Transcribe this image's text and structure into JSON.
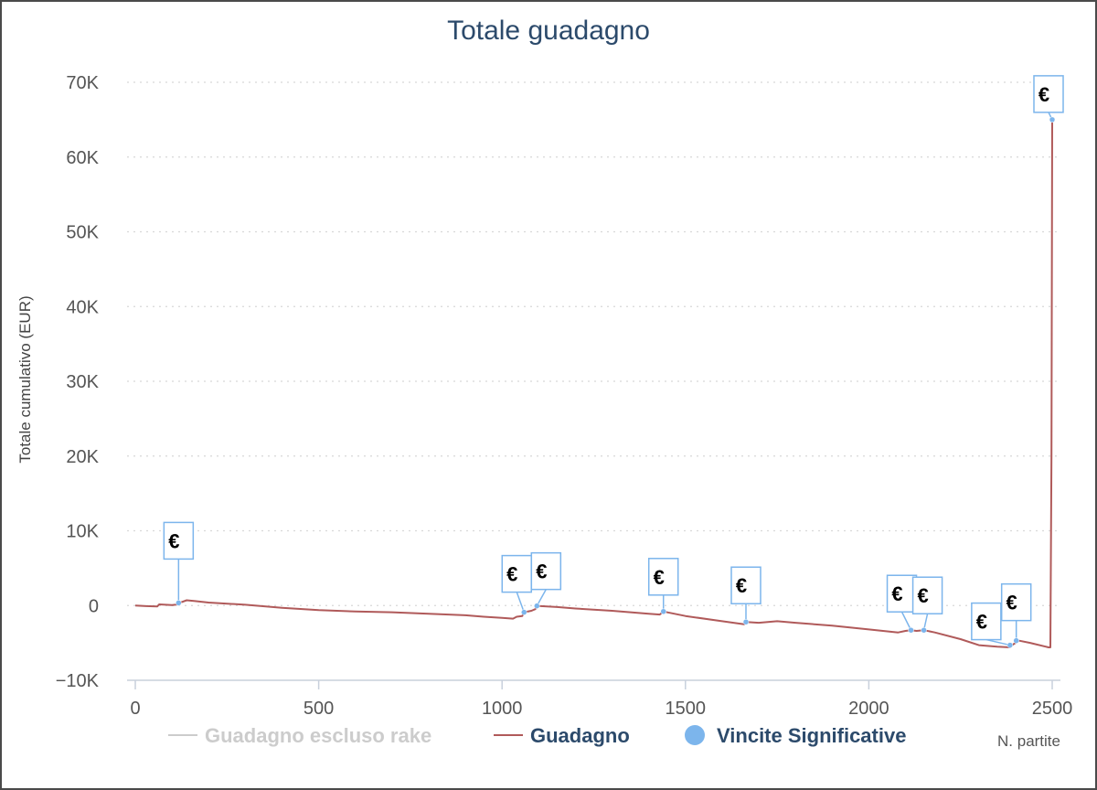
{
  "chart_data": {
    "type": "line",
    "title": "Totale guadagno",
    "ylabel": "Totale cumulativo (EUR)",
    "xlabel": "N. partite",
    "xlim": [
      -20,
      2510
    ],
    "ylim": [
      -10000,
      70000
    ],
    "x_ticks": [
      0,
      500,
      1000,
      1500,
      2000,
      2500
    ],
    "x_tick_labels": [
      "0",
      "500",
      "1000",
      "1500",
      "2000",
      "2500"
    ],
    "y_ticks": [
      -10000,
      0,
      10000,
      20000,
      30000,
      40000,
      50000,
      60000,
      70000
    ],
    "y_tick_labels": [
      "−10K",
      "0",
      "10K",
      "20K",
      "30K",
      "40K",
      "50K",
      "60K",
      "70K"
    ],
    "grid": "horizontal dotted",
    "legend_position": "bottom",
    "series": [
      {
        "name": "Guadagno escluso rake",
        "color": "#cccccc",
        "hidden": true,
        "points": []
      },
      {
        "name": "Guadagno",
        "color": "#b05a5a",
        "points": [
          [
            0,
            0
          ],
          [
            30,
            -80
          ],
          [
            60,
            -120
          ],
          [
            65,
            150
          ],
          [
            100,
            50
          ],
          [
            118,
            150
          ],
          [
            120,
            350
          ],
          [
            140,
            700
          ],
          [
            160,
            600
          ],
          [
            200,
            400
          ],
          [
            300,
            100
          ],
          [
            400,
            -300
          ],
          [
            500,
            -600
          ],
          [
            600,
            -800
          ],
          [
            700,
            -900
          ],
          [
            800,
            -1100
          ],
          [
            900,
            -1300
          ],
          [
            950,
            -1500
          ],
          [
            1000,
            -1650
          ],
          [
            1030,
            -1750
          ],
          [
            1040,
            -1500
          ],
          [
            1055,
            -1400
          ],
          [
            1060,
            -900
          ],
          [
            1080,
            -700
          ],
          [
            1090,
            -500
          ],
          [
            1100,
            -50
          ],
          [
            1150,
            -200
          ],
          [
            1200,
            -400
          ],
          [
            1300,
            -700
          ],
          [
            1400,
            -1100
          ],
          [
            1430,
            -1200
          ],
          [
            1440,
            -800
          ],
          [
            1500,
            -1400
          ],
          [
            1600,
            -2100
          ],
          [
            1660,
            -2500
          ],
          [
            1665,
            -2200
          ],
          [
            1700,
            -2300
          ],
          [
            1750,
            -2100
          ],
          [
            1800,
            -2300
          ],
          [
            1900,
            -2700
          ],
          [
            2000,
            -3200
          ],
          [
            2080,
            -3600
          ],
          [
            2100,
            -3400
          ],
          [
            2115,
            -3300
          ],
          [
            2130,
            -3400
          ],
          [
            2150,
            -3300
          ],
          [
            2180,
            -3600
          ],
          [
            2250,
            -4500
          ],
          [
            2300,
            -5300
          ],
          [
            2350,
            -5500
          ],
          [
            2385,
            -5600
          ],
          [
            2390,
            -5300
          ],
          [
            2400,
            -5000
          ],
          [
            2410,
            -4700
          ],
          [
            2440,
            -5000
          ],
          [
            2490,
            -5600
          ],
          [
            2495,
            -5600
          ],
          [
            2498,
            20000
          ],
          [
            2500,
            65000
          ]
        ]
      }
    ],
    "markers": {
      "name": "Vincite Significative",
      "color": "#7cb5ec",
      "label": "€",
      "points": [
        [
          118,
          350
        ],
        [
          1060,
          -900
        ],
        [
          1095,
          -50
        ],
        [
          1440,
          -800
        ],
        [
          1665,
          -2200
        ],
        [
          2115,
          -3300
        ],
        [
          2150,
          -3300
        ],
        [
          2385,
          -5300
        ],
        [
          2402,
          -4700
        ],
        [
          2500,
          65000
        ]
      ]
    }
  }
}
